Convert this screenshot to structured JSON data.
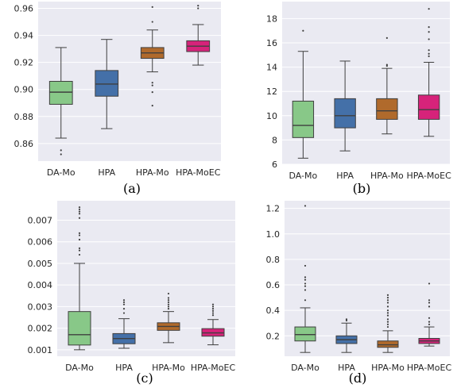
{
  "colors": {
    "DA-Mo": "#88c888",
    "HPA": "#4470a8",
    "HPA-Mo": "#b06a2c",
    "HPA-MoEC": "#d6237a"
  },
  "chart_data": [
    {
      "type": "box",
      "caption": "(a)",
      "categories": [
        "DA-Mo",
        "HPA",
        "HPA-Mo",
        "HPA-MoEC"
      ],
      "ylim": [
        0.847,
        0.965
      ],
      "yticks": [
        0.86,
        0.88,
        0.9,
        0.92,
        0.94,
        0.96
      ],
      "ytick_labels": [
        "0.86",
        "0.88",
        "0.90",
        "0.92",
        "0.94",
        "0.96"
      ],
      "series": [
        {
          "min": 0.864,
          "q1": 0.889,
          "median": 0.898,
          "q3": 0.906,
          "max": 0.931,
          "fliers": [
            0.855,
            0.852
          ]
        },
        {
          "min": 0.871,
          "q1": 0.895,
          "median": 0.904,
          "q3": 0.914,
          "max": 0.937,
          "fliers": []
        },
        {
          "min": 0.913,
          "q1": 0.923,
          "median": 0.927,
          "q3": 0.931,
          "max": 0.944,
          "fliers": [
            0.961,
            0.95,
            0.905,
            0.903,
            0.898,
            0.888
          ]
        },
        {
          "min": 0.918,
          "q1": 0.928,
          "median": 0.932,
          "q3": 0.936,
          "max": 0.948,
          "fliers": [
            0.962,
            0.96
          ]
        }
      ]
    },
    {
      "type": "box",
      "caption": "(b)",
      "categories": [
        "DA-Mo",
        "HPA",
        "HPA-Mo",
        "HPA-MoEC"
      ],
      "ylim": [
        6.0,
        19.4
      ],
      "yticks": [
        6,
        8,
        10,
        12,
        14,
        16,
        18
      ],
      "ytick_labels": [
        "6",
        "8",
        "10",
        "12",
        "14",
        "16",
        "18"
      ],
      "series": [
        {
          "min": 6.5,
          "q1": 8.2,
          "median": 9.2,
          "q3": 11.2,
          "max": 15.3,
          "fliers": [
            17.0
          ]
        },
        {
          "min": 7.1,
          "q1": 9.0,
          "median": 10.0,
          "q3": 11.4,
          "max": 14.5,
          "fliers": []
        },
        {
          "min": 8.5,
          "q1": 9.7,
          "median": 10.4,
          "q3": 11.4,
          "max": 13.9,
          "fliers": [
            16.4,
            14.2,
            14.1
          ]
        },
        {
          "min": 8.3,
          "q1": 9.7,
          "median": 10.5,
          "q3": 11.7,
          "max": 14.4,
          "fliers": [
            18.8,
            17.3,
            16.9,
            16.3,
            15.4,
            15.1,
            14.9
          ]
        }
      ]
    },
    {
      "type": "box",
      "caption": "(c)",
      "categories": [
        "DA-Mo",
        "HPA",
        "HPA-Mo",
        "HPA-MoEC"
      ],
      "ylim": [
        0.0007,
        0.0079
      ],
      "yticks": [
        0.001,
        0.002,
        0.003,
        0.004,
        0.005,
        0.006,
        0.007
      ],
      "ytick_labels": [
        "0.001",
        "0.002",
        "0.003",
        "0.004",
        "0.005",
        "0.006",
        "0.007"
      ],
      "series": [
        {
          "min": 0.001,
          "q1": 0.00122,
          "median": 0.0017,
          "q3": 0.00277,
          "max": 0.005,
          "fliers": [
            0.0076,
            0.0075,
            0.0074,
            0.0073,
            0.0071,
            0.0064,
            0.0063,
            0.0061,
            0.0057,
            0.0056,
            0.0054
          ]
        },
        {
          "min": 0.00107,
          "q1": 0.00128,
          "median": 0.00152,
          "q3": 0.00175,
          "max": 0.00244,
          "fliers": [
            0.0033,
            0.0032,
            0.0031,
            0.0029,
            0.0027
          ]
        },
        {
          "min": 0.00133,
          "q1": 0.0019,
          "median": 0.00208,
          "q3": 0.00225,
          "max": 0.00277,
          "fliers": [
            0.0036,
            0.0034,
            0.0033,
            0.0032,
            0.0031,
            0.003,
            0.0029
          ]
        },
        {
          "min": 0.00123,
          "q1": 0.00163,
          "median": 0.00178,
          "q3": 0.00198,
          "max": 0.0024,
          "fliers": [
            0.0031,
            0.003,
            0.0029,
            0.0028,
            0.0027,
            0.0026
          ]
        }
      ]
    },
    {
      "type": "box",
      "caption": "(d)",
      "categories": [
        "DA-Mo",
        "HPA",
        "HPA-Mo",
        "HPA-MoEC"
      ],
      "ylim": [
        0.04,
        1.26
      ],
      "yticks": [
        0.2,
        0.4,
        0.6,
        0.8,
        1.0,
        1.2
      ],
      "ytick_labels": [
        "0.2",
        "0.4",
        "0.6",
        "0.8",
        "1.0",
        "1.2"
      ],
      "series": [
        {
          "min": 0.07,
          "q1": 0.16,
          "median": 0.21,
          "q3": 0.27,
          "max": 0.42,
          "fliers": [
            1.22,
            0.75,
            0.66,
            0.64,
            0.61,
            0.59,
            0.56,
            0.48
          ]
        },
        {
          "min": 0.07,
          "q1": 0.14,
          "median": 0.17,
          "q3": 0.2,
          "max": 0.3,
          "fliers": [
            0.33,
            0.32
          ]
        },
        {
          "min": 0.07,
          "q1": 0.11,
          "median": 0.13,
          "q3": 0.16,
          "max": 0.24,
          "fliers": [
            0.52,
            0.5,
            0.48,
            0.46,
            0.43,
            0.4,
            0.38,
            0.36,
            0.33,
            0.31,
            0.29,
            0.27
          ]
        },
        {
          "min": 0.12,
          "q1": 0.14,
          "median": 0.16,
          "q3": 0.18,
          "max": 0.27,
          "fliers": [
            0.61,
            0.48,
            0.46,
            0.43,
            0.34,
            0.31,
            0.29
          ]
        }
      ]
    }
  ]
}
